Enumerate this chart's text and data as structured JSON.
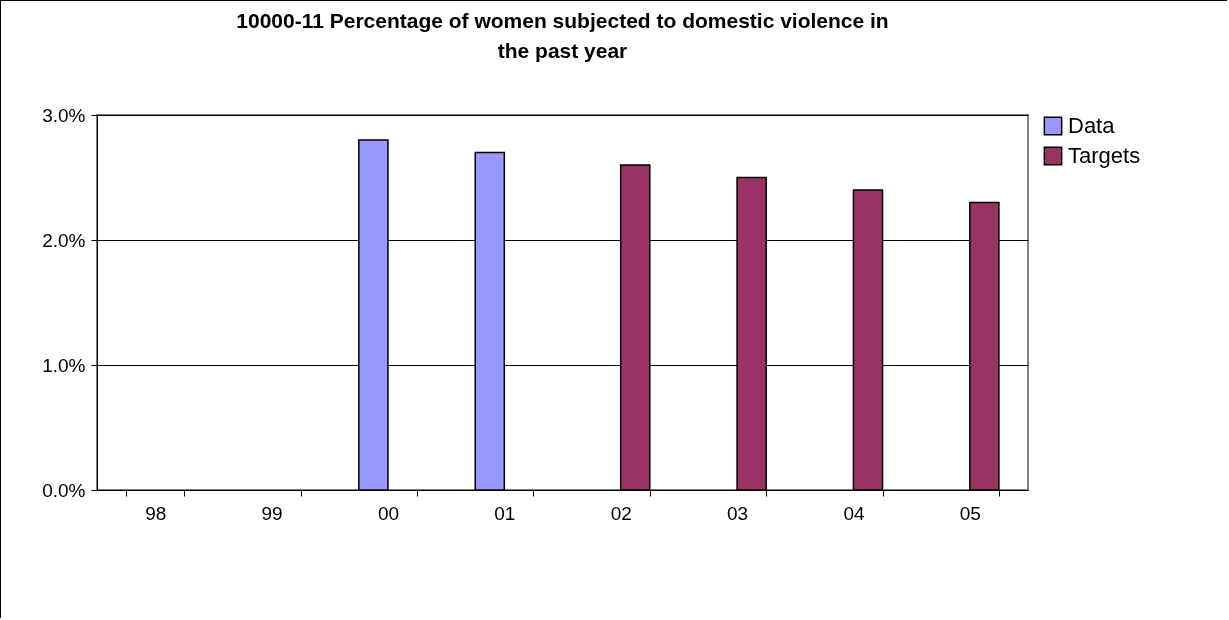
{
  "chart_data": {
    "type": "bar",
    "title": "10000-11  Percentage of women subjected to domestic violence in the past year",
    "categories": [
      "98",
      "99",
      "00",
      "01",
      "02",
      "03",
      "04",
      "05"
    ],
    "series": [
      {
        "name": "Data",
        "color": "#9999ff",
        "values": [
          null,
          null,
          2.8,
          2.7,
          null,
          null,
          null,
          null
        ]
      },
      {
        "name": "Targets",
        "color": "#993366",
        "values": [
          null,
          null,
          null,
          null,
          2.6,
          2.5,
          2.4,
          2.3
        ]
      }
    ],
    "ylim": [
      0,
      3
    ],
    "yticks": [
      {
        "value": 0,
        "label": "0.0%"
      },
      {
        "value": 1,
        "label": "1.0%"
      },
      {
        "value": 2,
        "label": "2.0%"
      },
      {
        "value": 3,
        "label": "3.0%"
      }
    ],
    "grid": "y",
    "legend": "right"
  }
}
